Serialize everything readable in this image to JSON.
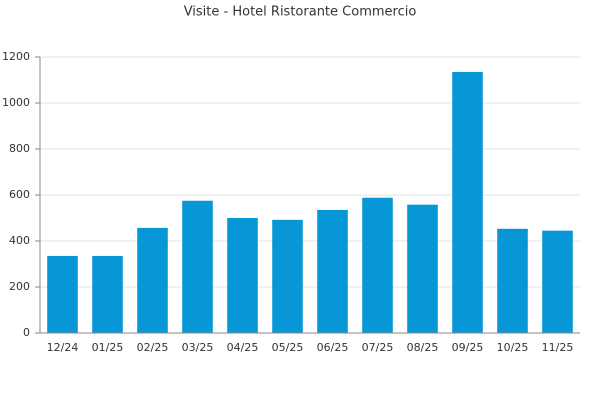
{
  "chart_data": {
    "type": "bar",
    "title": "Visite - Hotel Ristorante Commercio",
    "categories": [
      "12/24",
      "01/25",
      "02/25",
      "03/25",
      "04/25",
      "05/25",
      "06/25",
      "07/25",
      "08/25",
      "09/25",
      "10/25",
      "11/25"
    ],
    "values": [
      335,
      335,
      457,
      575,
      500,
      492,
      535,
      588,
      558,
      1135,
      453,
      445
    ],
    "color": "#0797d6",
    "ylim": [
      0,
      1200
    ],
    "yticks": [
      0,
      200,
      400,
      600,
      800,
      1000,
      1200
    ],
    "grid": true
  }
}
